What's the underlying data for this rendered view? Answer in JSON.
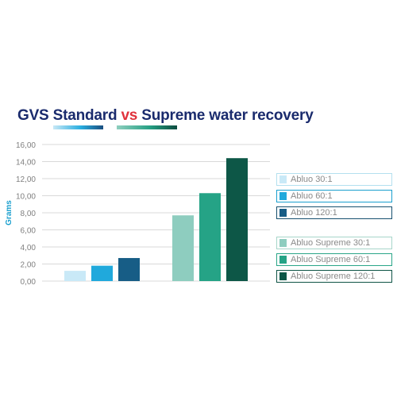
{
  "title": {
    "part1": "GVS Standard ",
    "vs": "vs",
    "part2": " Supreme water recovery"
  },
  "chart_data": {
    "type": "bar",
    "title": "GVS Standard vs Supreme water recovery",
    "ylabel": "Grams",
    "ylim": [
      0,
      16
    ],
    "yticks": [
      "0,00",
      "2,00",
      "4,00",
      "6,00",
      "8,00",
      "10,00",
      "12,00",
      "14,00",
      "16,00"
    ],
    "grid": true,
    "legend_position": "right",
    "series": [
      {
        "name": "Abluo 30:1",
        "value": 1.2,
        "color": "#c9e9f7",
        "group": 0
      },
      {
        "name": "Abluo 60:1",
        "value": 1.8,
        "color": "#20a9dc",
        "group": 0
      },
      {
        "name": "Abluo 120:1",
        "value": 2.7,
        "color": "#175d86",
        "group": 0
      },
      {
        "name": "Abluo Supreme 30:1",
        "value": 7.7,
        "color": "#8ecdbf",
        "group": 1
      },
      {
        "name": "Abluo Supreme 60:1",
        "value": 10.3,
        "color": "#25a386",
        "group": 1
      },
      {
        "name": "Abluo Supreme 120:1",
        "value": 14.4,
        "color": "#0d5747",
        "group": 1
      }
    ]
  }
}
